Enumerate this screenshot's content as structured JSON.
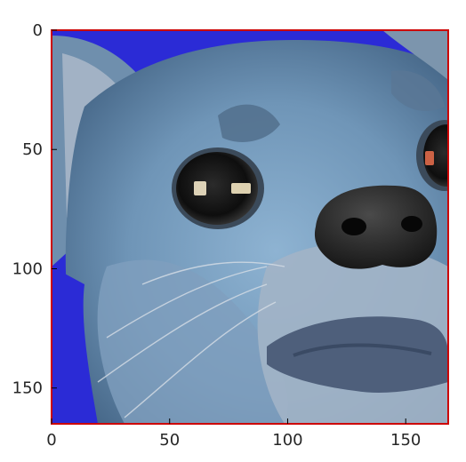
{
  "figure": {
    "type": "image-plot",
    "description_free": true,
    "frame_color": "#cc0000",
    "background_color": "#2b2bd6"
  },
  "axes": {
    "x": {
      "min": 0,
      "max": 168,
      "ticks": [
        0,
        50,
        100,
        150
      ],
      "labels": [
        "0",
        "50",
        "100",
        "150"
      ]
    },
    "y": {
      "min": 0,
      "max": 165,
      "ticks": [
        0,
        50,
        100,
        150
      ],
      "labels": [
        "0",
        "50",
        "100",
        "150"
      ],
      "inverted": true
    }
  }
}
